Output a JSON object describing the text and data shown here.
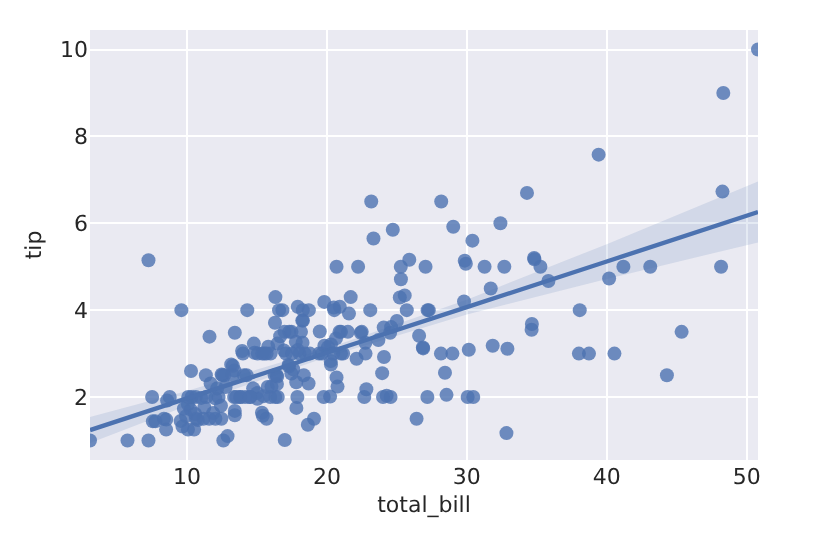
{
  "chart_data": {
    "type": "scatter",
    "xlabel": "total_bill",
    "ylabel": "tip",
    "xlim": [
      3.07,
      50.81
    ],
    "ylim": [
      0.55,
      10.45
    ],
    "xticks": [
      10,
      20,
      30,
      40,
      50
    ],
    "yticks": [
      2,
      4,
      6,
      8,
      10
    ],
    "grid": true,
    "series": [
      {
        "color": "#4c72b0",
        "marker": "circle",
        "x": [
          16.99,
          21.01,
          23.68,
          24.59,
          25.29,
          8.77,
          26.88,
          15.04,
          14.78,
          10.27,
          35.26,
          15.42,
          18.43,
          14.83,
          21.58,
          16.29,
          16.97,
          20.65,
          17.92,
          20.29,
          15.77,
          39.42,
          19.82,
          17.81,
          13.37,
          21.7,
          19.65,
          9.55,
          18.35,
          15.06,
          20.69,
          17.78,
          24.06,
          16.31,
          16.93,
          18.69,
          31.27,
          16.04,
          17.46,
          13.94,
          9.68,
          30.4,
          22.23,
          32.4,
          28.55,
          18.04,
          12.54,
          10.29,
          34.81,
          9.94,
          25.56,
          19.49,
          38.01,
          26.41,
          11.24,
          48.27,
          20.29,
          13.81,
          11.02,
          18.29,
          17.59,
          20.08,
          16.45,
          3.07,
          20.23,
          15.01,
          12.02,
          17.07,
          26.86,
          25.28,
          14.73,
          10.51,
          17.92,
          27.2,
          22.76,
          17.29,
          19.44,
          16.66,
          10.07,
          32.68,
          34.83,
          18.28,
          24.71,
          21.16,
          28.97,
          22.49,
          5.75,
          16.32,
          22.75,
          40.17,
          27.28,
          12.03,
          21.01,
          12.46,
          11.35,
          15.38,
          44.3,
          22.42,
          20.92,
          15.36,
          20.49,
          25.21,
          18.24,
          14.31,
          14.0,
          7.25,
          38.07,
          23.95,
          25.71,
          17.31,
          29.93,
          10.65,
          12.43,
          24.08,
          11.69,
          13.42,
          14.26,
          15.95,
          12.48,
          29.8,
          8.52,
          14.52,
          11.38,
          22.82,
          19.08,
          20.27,
          11.17,
          12.26,
          18.26,
          8.51,
          10.33,
          14.15,
          13.16,
          17.47,
          34.3,
          41.19,
          27.05,
          16.43,
          8.35,
          18.64,
          11.87,
          9.78,
          7.51,
          14.07,
          17.26,
          24.55,
          19.77,
          29.85,
          48.17,
          25.0,
          13.39,
          16.49,
          21.5,
          12.66,
          13.81,
          17.51,
          24.52,
          20.76,
          31.71,
          10.59,
          10.63,
          50.81,
          15.81,
          7.25,
          31.85,
          16.82,
          32.9,
          17.89,
          14.48,
          9.6,
          34.63,
          34.65,
          23.33,
          45.35,
          23.17,
          40.55,
          20.69,
          20.9,
          30.46,
          18.15,
          23.1,
          15.69,
          19.81,
          28.44,
          15.48,
          16.58,
          7.56,
          43.11,
          13.51,
          18.71,
          16.4,
          20.53,
          16.47,
          26.59,
          38.73,
          24.27,
          12.76,
          30.06,
          25.89,
          48.33,
          13.27,
          28.17,
          12.9,
          28.15,
          11.59,
          7.74,
          30.14,
          12.16,
          13.42,
          8.58,
          15.98,
          13.42,
          16.27,
          10.09,
          20.45,
          13.28,
          22.12,
          24.01,
          15.69,
          11.61,
          10.77,
          15.53,
          10.07,
          12.6,
          32.83,
          35.83,
          29.03,
          27.18,
          22.67,
          17.82,
          18.78
        ],
        "values": [
          1.01,
          3.5,
          3.31,
          3.61,
          4.71,
          2.0,
          3.12,
          1.96,
          3.23,
          1.71,
          5.0,
          1.57,
          3.0,
          3.02,
          3.92,
          3.71,
          3.5,
          3.35,
          4.08,
          2.75,
          2.23,
          7.58,
          3.18,
          2.34,
          2.0,
          4.3,
          3.0,
          1.45,
          2.5,
          3.0,
          2.45,
          3.27,
          3.6,
          2.0,
          3.07,
          2.31,
          5.0,
          2.24,
          2.54,
          3.06,
          1.32,
          5.6,
          5.0,
          6.0,
          2.05,
          3.0,
          2.5,
          2.6,
          5.2,
          1.56,
          4.34,
          3.51,
          3.0,
          1.5,
          1.76,
          6.73,
          3.21,
          2.0,
          1.98,
          3.76,
          2.64,
          3.15,
          2.47,
          1.0,
          2.01,
          2.09,
          1.97,
          3.0,
          3.14,
          5.0,
          2.2,
          1.25,
          3.08,
          4.0,
          3.0,
          2.71,
          3.0,
          3.4,
          1.83,
          5.0,
          5.17,
          4.0,
          5.85,
          3.0,
          3.0,
          3.5,
          1.0,
          4.3,
          3.25,
          4.73,
          4.0,
          1.5,
          3.0,
          1.5,
          2.5,
          3.0,
          2.5,
          3.48,
          4.08,
          1.64,
          4.06,
          4.29,
          3.76,
          4.0,
          3.0,
          1.0,
          4.0,
          2.55,
          4.0,
          3.5,
          5.07,
          1.5,
          1.8,
          2.92,
          2.31,
          1.68,
          2.5,
          2.0,
          2.52,
          4.2,
          1.48,
          2.0,
          2.0,
          2.18,
          1.5,
          2.83,
          1.5,
          2.0,
          3.25,
          1.25,
          2.0,
          2.0,
          2.75,
          3.5,
          6.7,
          5.0,
          5.0,
          2.3,
          1.5,
          1.36,
          1.63,
          1.73,
          2.0,
          2.5,
          2.74,
          2.0,
          2.0,
          5.14,
          5.0,
          3.75,
          2.61,
          2.0,
          3.5,
          2.5,
          2.0,
          3.0,
          3.48,
          2.24,
          4.5,
          1.61,
          2.0,
          10.0,
          3.16,
          5.15,
          3.18,
          4.0,
          3.11,
          2.0,
          2.0,
          4.0,
          3.55,
          3.68,
          5.65,
          3.5,
          6.5,
          3.0,
          5.0,
          3.5,
          2.0,
          3.5,
          4.0,
          1.5,
          4.19,
          2.56,
          2.02,
          4.0,
          1.44,
          5.0,
          2.0,
          4.0,
          2.5,
          4.0,
          3.23,
          3.41,
          3.0,
          2.03,
          2.23,
          2.0,
          5.16,
          9.0,
          2.5,
          6.5,
          1.1,
          3.0,
          1.5,
          1.44,
          3.09,
          2.2,
          3.48,
          1.92,
          3.0,
          1.58,
          2.5,
          2.0,
          3.0,
          2.72,
          2.88,
          2.0,
          3.0,
          3.39,
          1.47,
          3.0,
          1.25,
          1.0,
          1.17,
          4.67,
          5.92,
          2.0,
          2.0,
          1.75,
          3.0
        ]
      },
      {
        "type": "line",
        "color": "#4c72b0",
        "marker": "none",
        "x": [
          3.07,
          10,
          20,
          30,
          40,
          50.81
        ],
        "values": [
          1.24,
          1.97,
          3.02,
          4.07,
          5.12,
          6.26
        ],
        "lower": [
          0.94,
          1.8,
          2.92,
          3.9,
          4.72,
          5.56
        ],
        "upper": [
          1.54,
          2.14,
          3.12,
          4.24,
          5.52,
          6.96
        ]
      }
    ]
  }
}
